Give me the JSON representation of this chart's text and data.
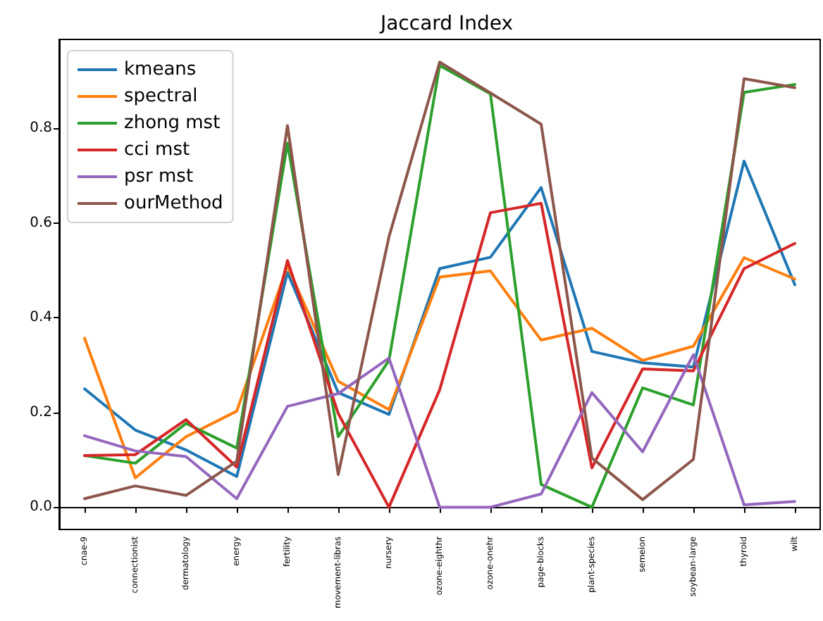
{
  "chart_data": {
    "type": "line",
    "title": "Jaccard Index",
    "categories": [
      "cnae-9",
      "connectionist",
      "dermatology",
      "energy",
      "fertility",
      "movement-libras",
      "nursery",
      "ozone-eighthr",
      "ozone-onehr",
      "page-blocks",
      "plant-species",
      "semeion",
      "soybean-large",
      "thyroid",
      "wilt"
    ],
    "series": [
      {
        "name": "kmeans",
        "color": "#1f77b4",
        "values": [
          0.25,
          0.163,
          0.121,
          0.065,
          0.496,
          0.242,
          0.196,
          0.504,
          0.528,
          0.675,
          0.329,
          0.305,
          0.296,
          0.731,
          0.47
        ]
      },
      {
        "name": "spectral",
        "color": "#ff7f0e",
        "values": [
          0.357,
          0.062,
          0.149,
          0.203,
          0.51,
          0.266,
          0.206,
          0.486,
          0.499,
          0.353,
          0.378,
          0.31,
          0.34,
          0.527,
          0.482
        ]
      },
      {
        "name": "zhong mst",
        "color": "#2ca02c",
        "values": [
          0.109,
          0.093,
          0.177,
          0.125,
          0.769,
          0.149,
          0.31,
          0.933,
          0.873,
          0.048,
          0.0,
          0.252,
          0.216,
          0.876,
          0.893
        ]
      },
      {
        "name": "cci mst",
        "color": "#d62728",
        "values": [
          0.109,
          0.111,
          0.185,
          0.085,
          0.521,
          0.198,
          0.0,
          0.248,
          0.622,
          0.642,
          0.083,
          0.292,
          0.288,
          0.504,
          0.557
        ]
      },
      {
        "name": "psr mst",
        "color": "#9467bd",
        "values": [
          0.151,
          0.119,
          0.107,
          0.018,
          0.213,
          0.24,
          0.315,
          0.0,
          0.0,
          0.028,
          0.242,
          0.117,
          0.322,
          0.005,
          0.012
        ]
      },
      {
        "name": "ourMethod",
        "color": "#8c564b",
        "values": [
          0.018,
          0.045,
          0.025,
          0.097,
          0.806,
          0.069,
          0.571,
          0.94,
          0.875,
          0.809,
          0.104,
          0.016,
          0.101,
          0.905,
          0.886
        ]
      }
    ],
    "ylim": [
      -0.047,
      0.988
    ],
    "yticks": [
      {
        "value": 0,
        "label": "0.0"
      },
      0.2,
      0.4,
      0.6,
      0.8
    ],
    "legend": "top left",
    "marker": "none",
    "line_style": "solid"
  }
}
